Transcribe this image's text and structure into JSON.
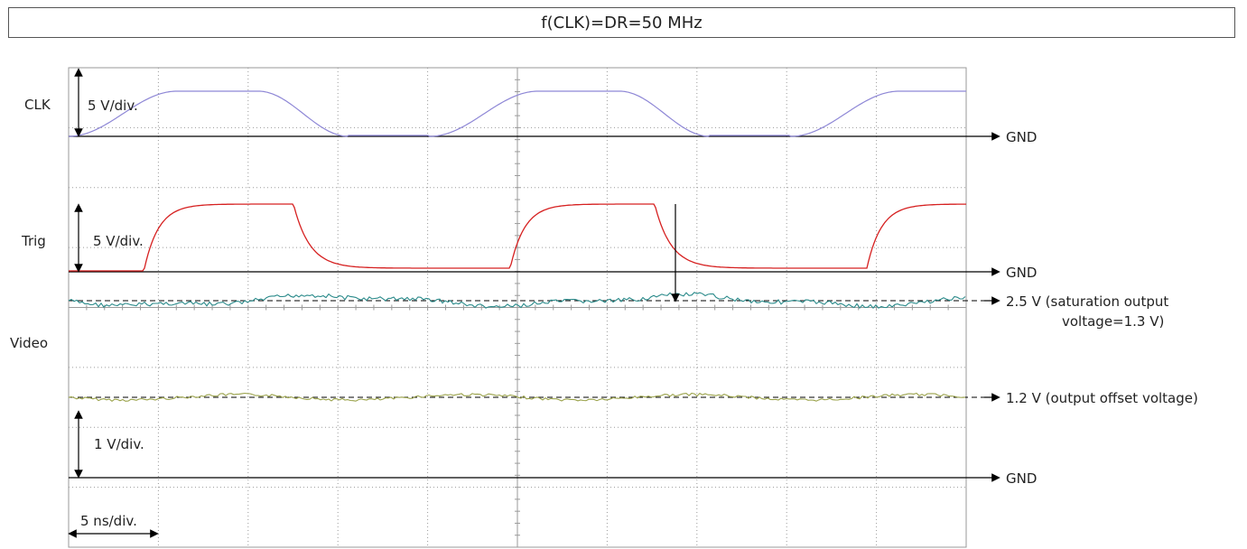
{
  "title": "f(CLK)=DR=50 MHz",
  "channels": {
    "clk": {
      "label": "CLK",
      "scale": "5 V/div.",
      "ground": "GND",
      "color": "#8e87d6"
    },
    "trig": {
      "label": "Trig",
      "scale": "5 V/div.",
      "ground": "GND",
      "color": "#d62020"
    },
    "video": {
      "label": "Video",
      "scale": "1 V/div.",
      "ground": "GND",
      "saturation_label_line1": "2.5 V (saturation output",
      "saturation_label_line2": "voltage=1.3 V)",
      "offset_label": "1.2 V (output offset voltage)",
      "saturation_color": "#2a8a8a",
      "offset_color": "#9aa24a"
    }
  },
  "timebase": "5 ns/div.",
  "colors": {
    "grid": "#9a9a9a",
    "axis": "#000000",
    "frame": "#555555"
  }
}
